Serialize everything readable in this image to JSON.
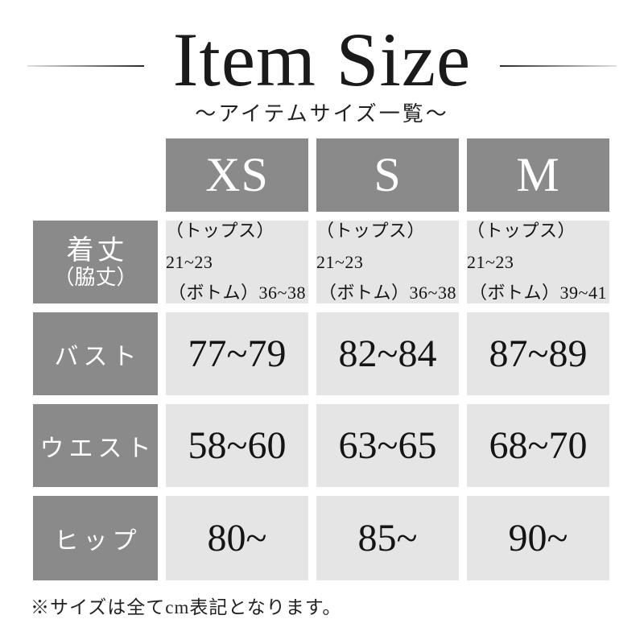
{
  "title": "Item Size",
  "subtitle": "～アイテムサイズ一覧～",
  "footnote": "※サイズは全てcm表記となります。",
  "colors": {
    "title_text": "#1a1a1a",
    "header_bg": "#8a8a8a",
    "header_text": "#ffffff",
    "cell_bg": "#e5e5e5",
    "cell_text": "#141414"
  },
  "chart_data": {
    "type": "table",
    "title": "Item Size",
    "subtitle": "アイテムサイズ一覧",
    "unit": "cm",
    "columns": [
      "XS",
      "S",
      "M"
    ],
    "row_labels": [
      {
        "main": "着丈",
        "sub": "（脇丈）"
      },
      {
        "main": "バスト"
      },
      {
        "main": "ウエスト"
      },
      {
        "main": "ヒップ"
      }
    ],
    "cells": [
      [
        [
          "（トップス）21~23",
          "（ボトム）36~38"
        ],
        [
          "（トップス）21~23",
          "（ボトム）36~38"
        ],
        [
          "（トップス）21~23",
          "（ボトム）39~41"
        ]
      ],
      [
        "77~79",
        "82~84",
        "87~89"
      ],
      [
        "58~60",
        "63~65",
        "68~70"
      ],
      [
        "80~",
        "85~",
        "90~"
      ]
    ]
  }
}
